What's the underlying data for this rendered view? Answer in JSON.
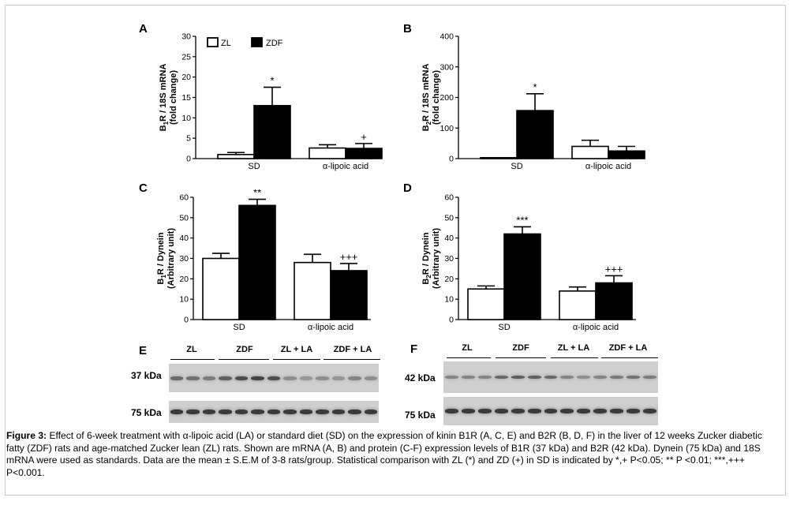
{
  "panels": {
    "A": {
      "letter": "A",
      "ylabel_main": "B",
      "ylabel_sub": "1",
      "ylabel_rest": "R / 18S mRNA",
      "ylabel2": "(fold change)",
      "ymax": 30,
      "ystep": 5,
      "groups": [
        "SD",
        "α-lipoic acid"
      ],
      "zl": [
        {
          "value": 1.0,
          "err": 0.5
        },
        {
          "value": 2.6,
          "err": 0.8
        }
      ],
      "zdf": [
        {
          "value": 13.0,
          "err": 4.5
        },
        {
          "value": 2.5,
          "err": 1.2
        }
      ],
      "sig": [
        {
          "series": "zdf",
          "group": 0,
          "text": "*"
        },
        {
          "series": "zdf",
          "group": 1,
          "text": "+"
        }
      ],
      "legend": {
        "zl": "ZL",
        "zdf": "ZDF"
      }
    },
    "B": {
      "letter": "B",
      "ylabel_main": "B",
      "ylabel_sub": "2",
      "ylabel_rest": "R / 18S mRNA",
      "ylabel2": "(fold change)",
      "ymax": 400,
      "ystep": 100,
      "groups": [
        "SD",
        "α-lipoic acid"
      ],
      "zl": [
        {
          "value": 3,
          "err": 0
        },
        {
          "value": 40,
          "err": 20
        }
      ],
      "zdf": [
        {
          "value": 157,
          "err": 55
        },
        {
          "value": 25,
          "err": 15
        }
      ],
      "sig": [
        {
          "series": "zdf",
          "group": 0,
          "text": "*"
        }
      ]
    },
    "C": {
      "letter": "C",
      "ylabel_main": "B",
      "ylabel_sub": "1",
      "ylabel_rest": "R / Dynein",
      "ylabel2": "(Arbitrary unit)",
      "ymax": 60,
      "ystep": 10,
      "groups": [
        "SD",
        "α-lipoic acid"
      ],
      "zl": [
        {
          "value": 30,
          "err": 2.5
        },
        {
          "value": 28,
          "err": 4
        }
      ],
      "zdf": [
        {
          "value": 56,
          "err": 3
        },
        {
          "value": 24,
          "err": 3.5
        }
      ],
      "sig": [
        {
          "series": "zdf",
          "group": 0,
          "text": "**"
        },
        {
          "series": "zdf",
          "group": 1,
          "text": "+++"
        }
      ]
    },
    "D": {
      "letter": "D",
      "ylabel_main": "B",
      "ylabel_sub": "2",
      "ylabel_rest": "R / Dynein",
      "ylabel2": "(Arbitrary unit)",
      "ymax": 60,
      "ystep": 10,
      "groups": [
        "SD",
        "α-lipoic acid"
      ],
      "zl": [
        {
          "value": 15,
          "err": 1.5
        },
        {
          "value": 14,
          "err": 2
        }
      ],
      "zdf": [
        {
          "value": 42,
          "err": 3.5
        },
        {
          "value": 18,
          "err": 3.5
        }
      ],
      "sig": [
        {
          "series": "zdf",
          "group": 0,
          "text": "***"
        },
        {
          "series": "zdf",
          "group": 1,
          "text": "+++"
        }
      ]
    }
  },
  "blots": {
    "E": {
      "letter": "E",
      "lanes": [
        "ZL",
        "ZDF",
        "ZL + LA",
        "ZDF + LA"
      ],
      "row1_label": "37 kDa",
      "row2_label": "75 kDa"
    },
    "F": {
      "letter": "F",
      "lanes": [
        "ZL",
        "ZDF",
        "ZL + LA",
        "ZDF + LA"
      ],
      "row1_label": "42 kDa",
      "row2_label": "75 kDa"
    }
  },
  "caption": {
    "label": "Figure 3:",
    "text": " Effect of 6-week treatment with α-lipoic acid (LA) or standard diet (SD) on the expression of kinin B1R (A, C, E) and B2R (B, D, F) in the liver of 12 weeks Zucker diabetic fatty (ZDF) rats and age-matched Zucker lean (ZL) rats. Shown are mRNA (A, B) and protein (C-F) expression levels of B1R (37 kDa) and B2R (42 kDa). Dynein (75 kDa) and 18S mRNA were used as standards. Data are the mean ± S.E.M of 3-8 rats/group. Statistical comparison with ZL (*) and ZD (+) in SD is indicated by *,+ P<0.05; ** P <0.01; ***,+++ P<0.001."
  },
  "chart_data": [
    {
      "type": "bar",
      "title": "A",
      "ylabel": "B1R / 18S mRNA (fold change)",
      "categories": [
        "SD",
        "α-lipoic acid"
      ],
      "ylim": [
        0,
        30
      ],
      "series": [
        {
          "name": "ZL",
          "values": [
            1.0,
            2.6
          ]
        },
        {
          "name": "ZDF",
          "values": [
            13.0,
            2.5
          ]
        }
      ]
    },
    {
      "type": "bar",
      "title": "B",
      "ylabel": "B2R / 18S mRNA (fold change)",
      "categories": [
        "SD",
        "α-lipoic acid"
      ],
      "ylim": [
        0,
        400
      ],
      "series": [
        {
          "name": "ZL",
          "values": [
            3,
            40
          ]
        },
        {
          "name": "ZDF",
          "values": [
            157,
            25
          ]
        }
      ]
    },
    {
      "type": "bar",
      "title": "C",
      "ylabel": "B1R / Dynein (Arbitrary unit)",
      "categories": [
        "SD",
        "α-lipoic acid"
      ],
      "ylim": [
        0,
        60
      ],
      "series": [
        {
          "name": "ZL",
          "values": [
            30,
            28
          ]
        },
        {
          "name": "ZDF",
          "values": [
            56,
            24
          ]
        }
      ]
    },
    {
      "type": "bar",
      "title": "D",
      "ylabel": "B2R / Dynein (Arbitrary unit)",
      "categories": [
        "SD",
        "α-lipoic acid"
      ],
      "ylim": [
        0,
        60
      ],
      "series": [
        {
          "name": "ZL",
          "values": [
            15,
            14
          ]
        },
        {
          "name": "ZDF",
          "values": [
            42,
            18
          ]
        }
      ]
    }
  ]
}
